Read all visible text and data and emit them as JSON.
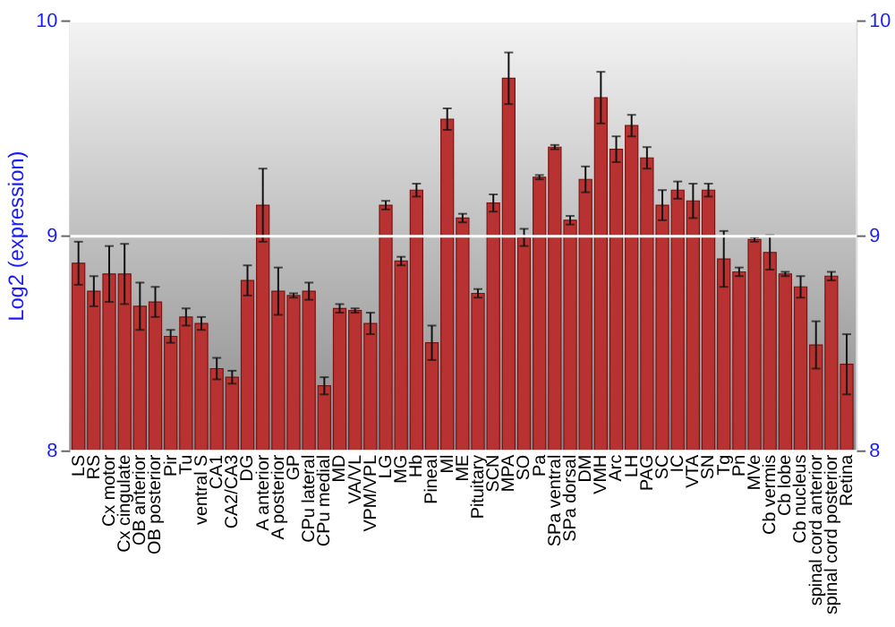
{
  "chart_data": {
    "type": "bar",
    "ylabel": "Log2 (expression)",
    "categories": [
      "LS",
      "RS",
      "Cx motor",
      "Cx cingulate",
      "OB anterior",
      "OB posterior",
      "Pir",
      "Tu",
      "ventral S",
      "CA1",
      "CA2/CA3",
      "DG",
      "A anterior",
      "A posterior",
      "GP",
      "CPu lateral",
      "CPu medial",
      "MD",
      "VA/VL",
      "VPM/VPL",
      "LG",
      "MG",
      "Hb",
      "Pineal",
      "Ml",
      "ME",
      "Pituitary",
      "SCN",
      "MPA",
      "SO",
      "Pa",
      "SPa ventral",
      "SPa dorsal",
      "DM",
      "VMH",
      "Arc",
      "LH",
      "PAG",
      "SC",
      "IC",
      "VTA",
      "SN",
      "Tg",
      "Pn",
      "MVe",
      "Cb vermis",
      "Cb lobe",
      "Cb nucleus",
      "spinal cord anterior",
      "spinal cord posterior",
      "Retina"
    ],
    "series": [
      {
        "color": "#b83232",
        "values": [
          8.87,
          8.74,
          8.82,
          8.82,
          8.67,
          8.69,
          8.53,
          8.62,
          8.59,
          8.38,
          8.34,
          8.79,
          9.14,
          8.74,
          8.72,
          8.74,
          8.3,
          8.66,
          8.65,
          8.59,
          9.14,
          8.88,
          9.21,
          8.5,
          9.54,
          9.08,
          8.73,
          9.15,
          9.73,
          8.99,
          9.27,
          9.41,
          9.07,
          9.26,
          9.64,
          9.4,
          9.51,
          9.36,
          9.14,
          9.21,
          9.16,
          9.21,
          8.89,
          8.83,
          8.98,
          8.92,
          8.82,
          8.76,
          8.49,
          8.81,
          8.4
        ],
        "errors": [
          0.1,
          0.07,
          0.13,
          0.14,
          0.11,
          0.07,
          0.03,
          0.04,
          0.03,
          0.05,
          0.03,
          0.07,
          0.17,
          0.11,
          0.01,
          0.04,
          0.04,
          0.02,
          0.01,
          0.05,
          0.02,
          0.02,
          0.03,
          0.08,
          0.05,
          0.02,
          0.02,
          0.04,
          0.12,
          0.04,
          0.01,
          0.01,
          0.02,
          0.06,
          0.12,
          0.06,
          0.05,
          0.05,
          0.07,
          0.04,
          0.08,
          0.03,
          0.13,
          0.02,
          0.01,
          0.08,
          0.01,
          0.05,
          0.11,
          0.02,
          0.14
        ]
      }
    ],
    "ylim": [
      8,
      10
    ],
    "yticks": [
      8,
      9,
      10
    ],
    "y2lim": [
      8,
      10
    ],
    "y2ticks": [
      8,
      9,
      10
    ],
    "grid": "y"
  }
}
